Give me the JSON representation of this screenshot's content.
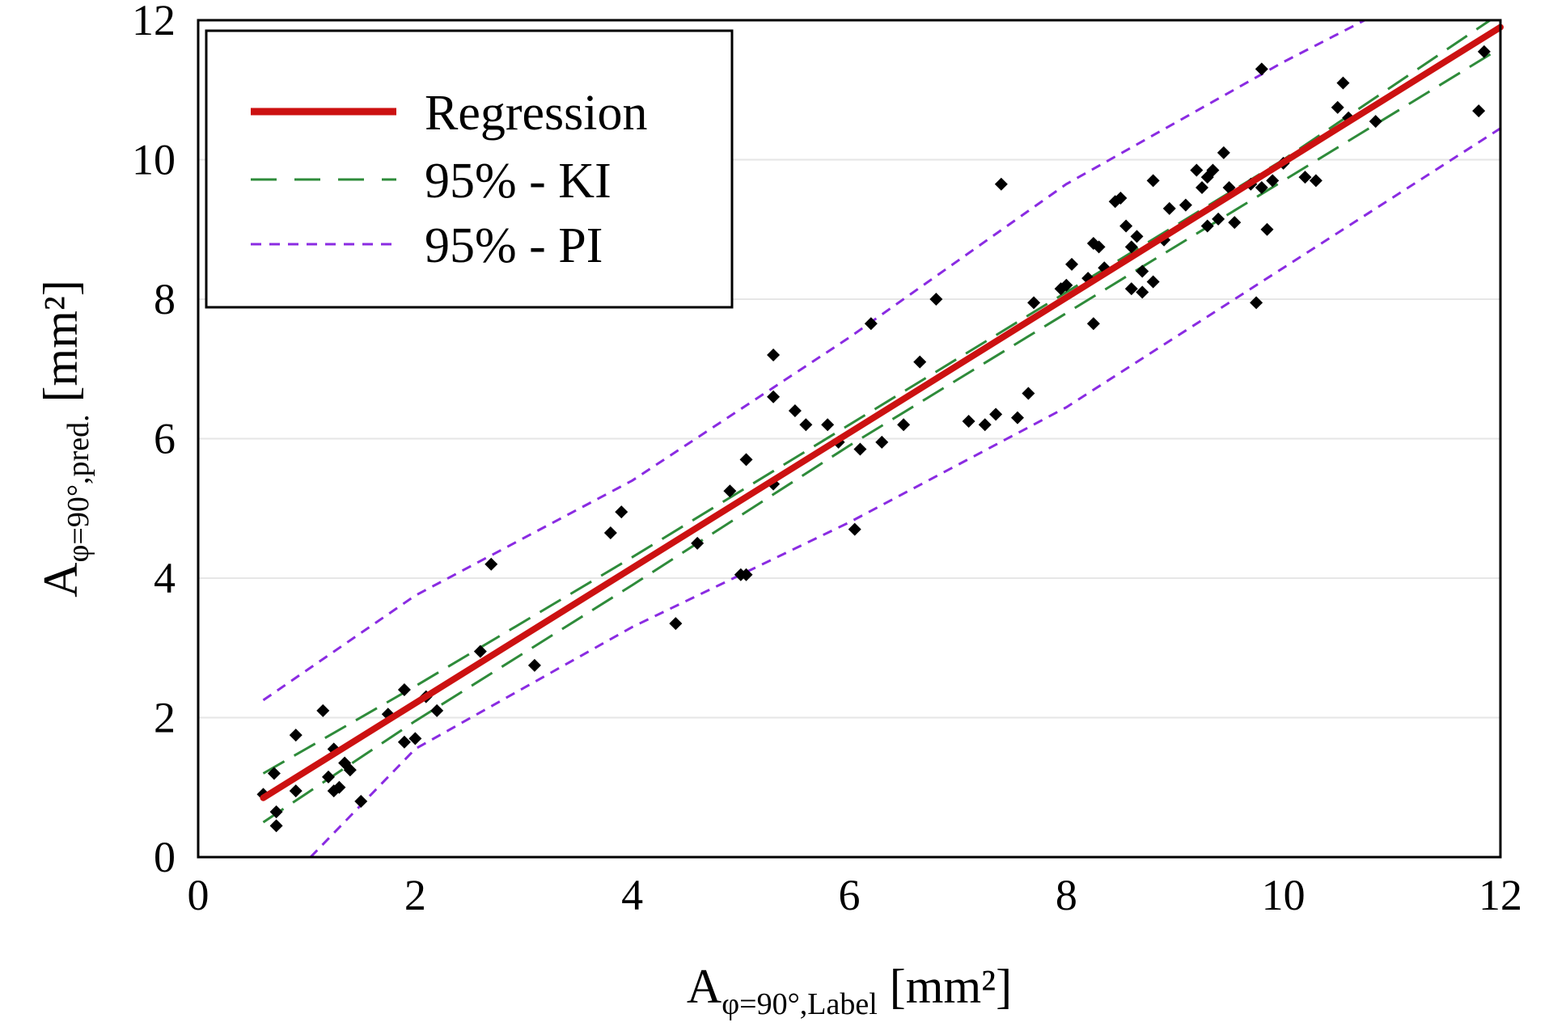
{
  "chart_data": {
    "type": "scatter",
    "xlim": [
      0,
      12
    ],
    "ylim": [
      0,
      12
    ],
    "x_ticks": [
      "0",
      "2",
      "4",
      "6",
      "8",
      "10",
      "12"
    ],
    "y_ticks": [
      "0",
      "2",
      "4",
      "6",
      "8",
      "10",
      "12"
    ],
    "xlabel": {
      "main": "A",
      "sub": "φ=90°,Label",
      "unit": " [mm²]"
    },
    "ylabel": {
      "main": "A",
      "sub": "φ=90°,pred.",
      "unit": " [mm²]"
    },
    "grid": "horizontal",
    "legend_position": "top-left",
    "legend": [
      {
        "label": "Regression",
        "color": "#cc1111",
        "style": "solid"
      },
      {
        "label": "95% - KI",
        "color": "#2e8b3a",
        "style": "long-dash"
      },
      {
        "label": "95% - PI",
        "color": "#8a2be2",
        "style": "short-dash"
      }
    ],
    "regression": {
      "x": [
        0.6,
        12.0
      ],
      "y": [
        0.85,
        11.9
      ]
    },
    "ci": {
      "x": [
        0.6,
        2,
        4,
        6,
        8,
        10,
        12
      ],
      "upper": [
        1.2,
        2.45,
        4.3,
        6.2,
        8.1,
        10.0,
        12.1
      ],
      "lower": [
        0.5,
        1.95,
        3.9,
        5.9,
        7.8,
        9.7,
        11.6
      ]
    },
    "pi": {
      "x": [
        0.6,
        2,
        4,
        6,
        8,
        10,
        12
      ],
      "upper": [
        2.25,
        3.75,
        5.4,
        7.45,
        9.65,
        11.4,
        13.0
      ],
      "lower": [
        -0.7,
        1.55,
        3.3,
        4.8,
        6.45,
        8.45,
        10.45
      ]
    },
    "points": [
      [
        0.6,
        0.9
      ],
      [
        0.7,
        1.2
      ],
      [
        0.72,
        0.65
      ],
      [
        0.72,
        0.45
      ],
      [
        0.9,
        1.75
      ],
      [
        0.9,
        0.95
      ],
      [
        1.15,
        2.1
      ],
      [
        1.2,
        1.15
      ],
      [
        1.25,
        1.55
      ],
      [
        1.25,
        0.95
      ],
      [
        1.3,
        1.0
      ],
      [
        1.35,
        1.35
      ],
      [
        1.4,
        1.25
      ],
      [
        1.5,
        0.8
      ],
      [
        1.75,
        2.05
      ],
      [
        1.9,
        1.65
      ],
      [
        1.9,
        2.4
      ],
      [
        2.0,
        1.7
      ],
      [
        2.1,
        2.3
      ],
      [
        2.2,
        2.1
      ],
      [
        2.6,
        2.95
      ],
      [
        2.7,
        4.2
      ],
      [
        3.1,
        2.75
      ],
      [
        3.8,
        4.65
      ],
      [
        3.9,
        4.95
      ],
      [
        4.4,
        3.35
      ],
      [
        4.6,
        4.5
      ],
      [
        4.9,
        5.25
      ],
      [
        5.0,
        4.05
      ],
      [
        5.05,
        5.7
      ],
      [
        5.05,
        4.05
      ],
      [
        5.3,
        7.2
      ],
      [
        5.3,
        6.6
      ],
      [
        5.3,
        5.35
      ],
      [
        5.5,
        6.4
      ],
      [
        5.6,
        6.2
      ],
      [
        5.8,
        6.2
      ],
      [
        5.9,
        5.95
      ],
      [
        6.05,
        4.7
      ],
      [
        6.1,
        5.85
      ],
      [
        6.2,
        7.65
      ],
      [
        6.3,
        5.95
      ],
      [
        6.5,
        6.2
      ],
      [
        6.65,
        7.1
      ],
      [
        6.8,
        8.0
      ],
      [
        7.1,
        6.25
      ],
      [
        7.25,
        6.2
      ],
      [
        7.35,
        6.35
      ],
      [
        7.4,
        9.65
      ],
      [
        7.55,
        6.3
      ],
      [
        7.65,
        6.65
      ],
      [
        7.7,
        7.95
      ],
      [
        7.95,
        8.15
      ],
      [
        8.0,
        8.2
      ],
      [
        8.05,
        8.5
      ],
      [
        8.2,
        8.3
      ],
      [
        8.25,
        7.65
      ],
      [
        8.25,
        8.8
      ],
      [
        8.3,
        8.75
      ],
      [
        8.35,
        8.45
      ],
      [
        8.45,
        9.4
      ],
      [
        8.5,
        9.45
      ],
      [
        8.55,
        9.05
      ],
      [
        8.6,
        8.75
      ],
      [
        8.6,
        8.15
      ],
      [
        8.65,
        8.9
      ],
      [
        8.7,
        8.1
      ],
      [
        8.7,
        8.4
      ],
      [
        8.8,
        8.25
      ],
      [
        8.8,
        9.7
      ],
      [
        8.9,
        8.85
      ],
      [
        8.95,
        9.3
      ],
      [
        9.1,
        9.35
      ],
      [
        9.2,
        9.85
      ],
      [
        9.25,
        9.6
      ],
      [
        9.3,
        9.75
      ],
      [
        9.3,
        9.05
      ],
      [
        9.35,
        9.85
      ],
      [
        9.4,
        9.15
      ],
      [
        9.45,
        10.1
      ],
      [
        9.5,
        9.6
      ],
      [
        9.55,
        9.1
      ],
      [
        9.7,
        9.65
      ],
      [
        9.75,
        7.95
      ],
      [
        9.8,
        9.6
      ],
      [
        9.8,
        11.3
      ],
      [
        9.85,
        9.0
      ],
      [
        9.9,
        9.7
      ],
      [
        10.0,
        9.95
      ],
      [
        10.2,
        9.75
      ],
      [
        10.3,
        9.7
      ],
      [
        10.5,
        10.75
      ],
      [
        10.55,
        11.1
      ],
      [
        10.6,
        10.6
      ],
      [
        10.85,
        10.55
      ],
      [
        11.8,
        10.7
      ],
      [
        11.85,
        11.55
      ]
    ]
  }
}
